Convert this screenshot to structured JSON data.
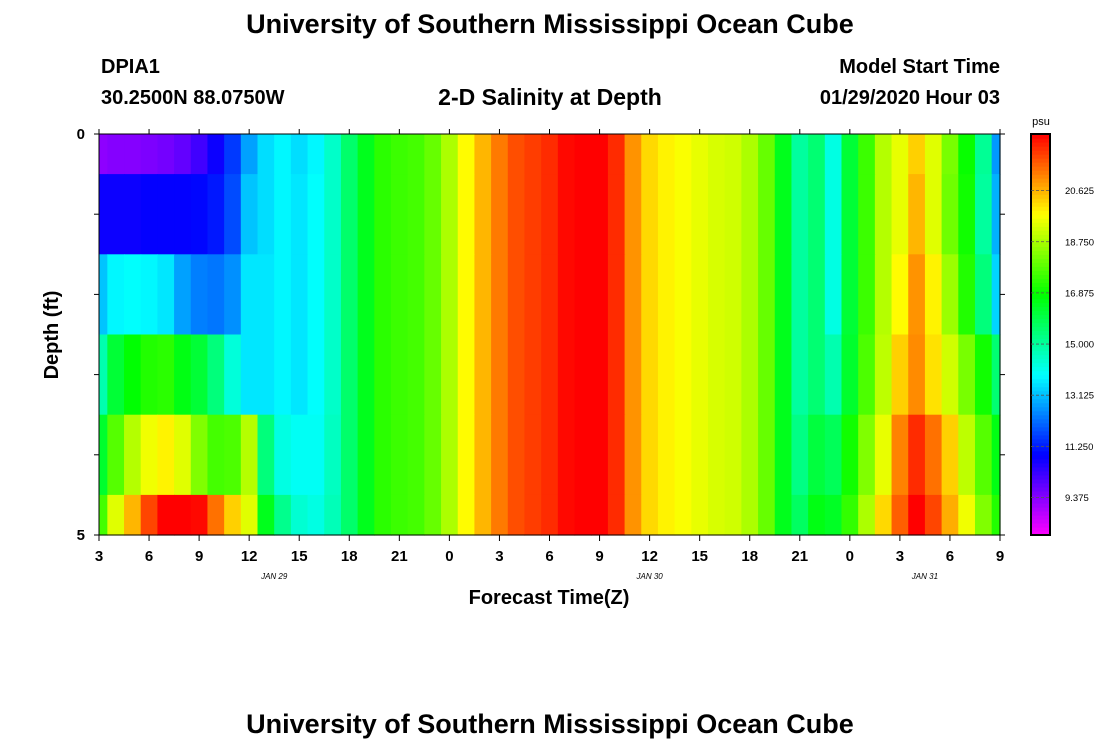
{
  "header": {
    "title": "University of Southern Mississippi Ocean Cube",
    "station_id": "DPIA1",
    "station_coords": "30.2500N 88.0750W",
    "chart_title": "2-D Salinity at Depth",
    "model_label": "Model Start Time",
    "model_time": "01/29/2020 Hour 03"
  },
  "footer": {
    "title": "University of Southern Mississippi Ocean Cube"
  },
  "chart_data": {
    "type": "heatmap",
    "title": "2-D Salinity at Depth",
    "xlabel": "Forecast Time(Z)",
    "ylabel": "Depth (ft)",
    "x_hours": [
      0,
      1,
      2,
      3,
      4,
      5,
      6,
      7,
      8,
      9,
      10,
      11,
      12,
      13,
      14,
      15,
      16,
      17,
      18,
      19,
      20,
      21,
      22,
      23,
      24,
      25,
      26,
      27,
      28,
      29,
      30,
      31,
      32,
      33,
      34,
      35,
      36,
      37,
      38,
      39,
      40,
      41,
      42,
      43,
      44,
      45,
      46,
      47,
      48,
      49,
      50,
      51,
      52,
      53,
      54
    ],
    "x_range": [
      0,
      54
    ],
    "x_tick_labels": [
      "3",
      "6",
      "9",
      "12",
      "15",
      "18",
      "21",
      "0",
      "3",
      "6",
      "9",
      "12",
      "15",
      "18",
      "21",
      "0",
      "3",
      "6",
      "9"
    ],
    "date_labels": [
      {
        "text": "JAN  29",
        "hour": 10.5
      },
      {
        "text": "JAN  30",
        "hour": 33
      },
      {
        "text": "JAN  31",
        "hour": 49.5
      }
    ],
    "depth_levels": [
      0,
      1,
      2,
      3,
      4,
      5
    ],
    "y_range": [
      0,
      5
    ],
    "y_tick_labels": [
      "0",
      "5"
    ],
    "values": [
      [
        9.3,
        9.4,
        9.4,
        9.5,
        9.6,
        9.8,
        10.2,
        10.8,
        11.6,
        12.8,
        13.5,
        13.8,
        13.5,
        13.8,
        14.5,
        15.6,
        16.5,
        17.3,
        17.5,
        17.6,
        18.0,
        18.8,
        19.8,
        20.6,
        21.3,
        21.8,
        22.0,
        22.2,
        22.6,
        22.8,
        22.8,
        22.2,
        21.0,
        20.2,
        19.9,
        19.7,
        19.5,
        19.3,
        19.2,
        18.8,
        18.0,
        16.5,
        15.0,
        15.5,
        14.2,
        16.2,
        17.5,
        18.9,
        19.5,
        20.3,
        19.4,
        18.2,
        16.9,
        15.1,
        12.7
      ],
      [
        10.8,
        10.8,
        10.8,
        10.9,
        10.9,
        10.9,
        11.0,
        11.2,
        11.8,
        13.2,
        13.5,
        13.8,
        13.6,
        13.9,
        14.5,
        15.6,
        16.5,
        17.3,
        17.5,
        17.6,
        18.0,
        18.8,
        19.8,
        20.6,
        21.3,
        21.8,
        22.0,
        22.2,
        22.6,
        22.8,
        22.8,
        22.2,
        21.0,
        20.2,
        19.9,
        19.7,
        19.5,
        19.3,
        19.2,
        18.8,
        18.0,
        16.5,
        15.0,
        15.5,
        14.2,
        16.2,
        17.5,
        18.9,
        19.5,
        20.6,
        19.4,
        18.1,
        17.0,
        15.0,
        13.0
      ],
      [
        13.2,
        13.8,
        13.9,
        13.8,
        13.6,
        12.8,
        12.4,
        12.3,
        12.6,
        13.6,
        13.6,
        13.8,
        13.6,
        13.9,
        14.5,
        15.6,
        16.5,
        17.3,
        17.5,
        17.6,
        18.0,
        18.8,
        19.8,
        20.6,
        21.3,
        21.8,
        22.0,
        22.2,
        22.6,
        22.8,
        22.8,
        22.2,
        21.0,
        20.2,
        19.9,
        19.7,
        19.5,
        19.3,
        19.2,
        18.8,
        18.0,
        16.5,
        15.0,
        15.5,
        14.2,
        16.2,
        17.5,
        18.9,
        19.8,
        21.0,
        19.9,
        18.6,
        17.2,
        15.4,
        13.4
      ],
      [
        14.8,
        16.2,
        16.8,
        17.2,
        17.3,
        16.6,
        16.2,
        15.4,
        14.3,
        13.6,
        13.6,
        13.8,
        13.6,
        13.9,
        14.5,
        15.6,
        16.5,
        17.3,
        17.5,
        17.6,
        18.0,
        18.8,
        19.8,
        20.6,
        21.3,
        21.8,
        22.0,
        22.2,
        22.6,
        22.8,
        22.8,
        22.2,
        21.0,
        20.2,
        19.9,
        19.7,
        19.5,
        19.3,
        19.2,
        18.8,
        18.0,
        16.5,
        15.0,
        15.5,
        14.8,
        16.3,
        17.7,
        19.0,
        20.3,
        21.1,
        20.1,
        19.2,
        18.2,
        17.0,
        15.5
      ],
      [
        16.3,
        17.8,
        18.9,
        19.6,
        19.9,
        19.4,
        18.3,
        17.6,
        17.7,
        18.9,
        15.4,
        14.2,
        14.0,
        14.0,
        14.6,
        15.6,
        16.5,
        17.3,
        17.5,
        17.6,
        18.0,
        18.8,
        19.8,
        20.6,
        21.3,
        21.8,
        22.0,
        22.2,
        22.6,
        22.8,
        22.8,
        22.2,
        21.0,
        20.2,
        19.9,
        19.7,
        19.5,
        19.3,
        19.2,
        18.8,
        18.0,
        16.5,
        15.3,
        16.1,
        15.8,
        17.0,
        18.3,
        19.5,
        21.2,
        22.2,
        21.4,
        20.3,
        19.0,
        17.8,
        16.6
      ],
      [
        17.6,
        19.4,
        20.6,
        21.9,
        22.9,
        23.5,
        22.6,
        21.4,
        20.3,
        19.4,
        16.5,
        15.2,
        14.4,
        14.2,
        14.7,
        15.6,
        16.5,
        17.3,
        17.5,
        17.6,
        18.0,
        18.8,
        19.8,
        20.6,
        21.3,
        21.8,
        22.0,
        22.2,
        22.6,
        22.8,
        22.8,
        22.2,
        21.0,
        20.2,
        19.9,
        19.7,
        19.5,
        19.3,
        19.2,
        18.8,
        18.0,
        16.5,
        15.7,
        16.6,
        16.4,
        17.4,
        18.8,
        20.2,
        21.6,
        22.8,
        21.9,
        20.7,
        19.6,
        18.3,
        17.2
      ]
    ],
    "colorbar": {
      "unit": "psu",
      "vmin": 8.0,
      "vmax": 22.7,
      "tick_labels": [
        "9.375",
        "11.250",
        "13.125",
        "15.000",
        "16.875",
        "18.750",
        "20.625"
      ],
      "tick_values": [
        9.375,
        11.25,
        13.125,
        15.0,
        16.875,
        18.75,
        20.625
      ]
    }
  }
}
